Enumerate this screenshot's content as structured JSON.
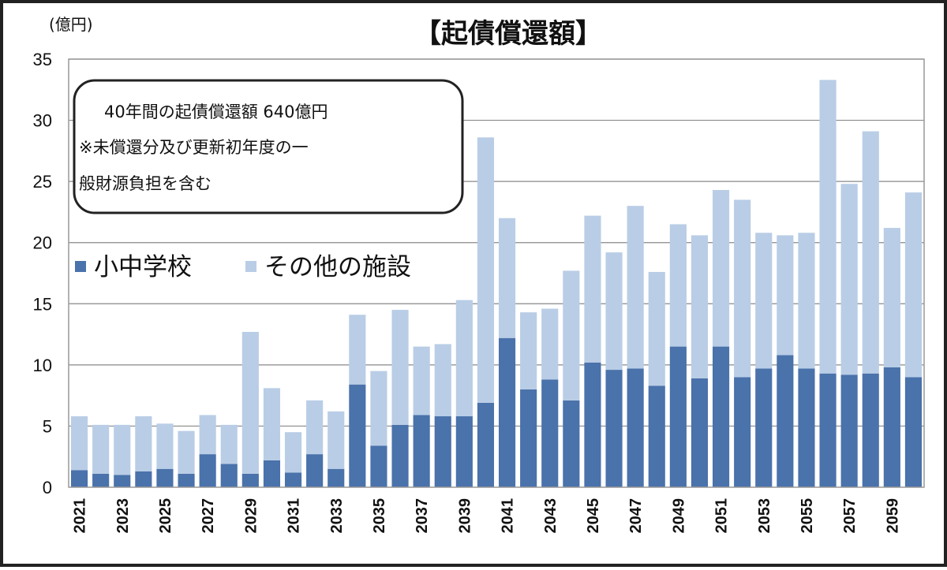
{
  "chart_data": {
    "type": "bar",
    "stacked": true,
    "title": "【起債償還額】",
    "unit_label": "(億円)",
    "ylim": [
      0,
      35
    ],
    "yticks": [
      0,
      5,
      10,
      15,
      20,
      25,
      30,
      35
    ],
    "categories": [
      "2021",
      "2022",
      "2023",
      "2024",
      "2025",
      "2026",
      "2027",
      "2028",
      "2029",
      "2030",
      "2031",
      "2032",
      "2033",
      "2034",
      "2035",
      "2036",
      "2037",
      "2038",
      "2039",
      "2040",
      "2041",
      "2042",
      "2043",
      "2044",
      "2045",
      "2046",
      "2047",
      "2048",
      "2049",
      "2050",
      "2051",
      "2052",
      "2053",
      "2054",
      "2055",
      "2056",
      "2057",
      "2058",
      "2059",
      "2060"
    ],
    "xtick_labels": [
      "2021",
      "2023",
      "2025",
      "2027",
      "2029",
      "2031",
      "2033",
      "2035",
      "2037",
      "2039",
      "2041",
      "2043",
      "2045",
      "2047",
      "2049",
      "2051",
      "2053",
      "2055",
      "2057",
      "2059"
    ],
    "series": [
      {
        "name": "小中学校",
        "color": "#4a72ab",
        "values": [
          1.4,
          1.1,
          1.0,
          1.3,
          1.5,
          1.1,
          2.7,
          1.9,
          1.1,
          2.2,
          1.2,
          2.7,
          1.5,
          8.4,
          3.4,
          5.1,
          5.9,
          5.8,
          5.8,
          6.9,
          12.2,
          8.0,
          8.8,
          7.1,
          10.2,
          9.6,
          9.7,
          8.3,
          11.5,
          8.9,
          11.5,
          9.0,
          9.7,
          10.8,
          9.7,
          9.3,
          9.2,
          9.3,
          9.8,
          9.0
        ]
      },
      {
        "name": "その他の施設",
        "color": "#b9cde6",
        "values": [
          4.4,
          4.0,
          4.1,
          4.5,
          3.7,
          3.5,
          3.2,
          3.2,
          11.6,
          5.9,
          3.3,
          4.4,
          4.7,
          5.7,
          6.1,
          9.4,
          5.6,
          5.9,
          9.5,
          21.7,
          9.8,
          6.3,
          5.8,
          10.6,
          12.0,
          9.6,
          13.3,
          9.3,
          10.0,
          11.7,
          12.8,
          14.5,
          11.1,
          9.8,
          11.1,
          24.0,
          15.6,
          19.8,
          11.4,
          15.1
        ]
      }
    ],
    "legend_position": "middle-left",
    "grid": true
  },
  "annotation": {
    "lines": [
      "40年間の起債償還額 640億円",
      "※未償還分及び更新初年度の一",
      "般財源負担を含む"
    ]
  }
}
